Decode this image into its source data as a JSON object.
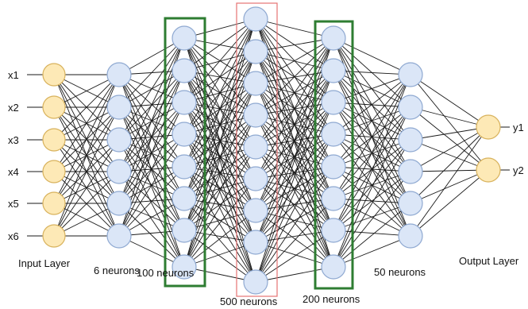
{
  "colors": {
    "input_fill": "#fde9b6",
    "input_stroke": "#d8b25c",
    "hidden_fill": "#dbe6f7",
    "hidden_stroke": "#8fa9d1",
    "output_fill": "#fde9b6",
    "output_stroke": "#d8b25c",
    "edge": "#1a1a1a",
    "highlight_green": "#2e7d32",
    "highlight_red": "#e57373"
  },
  "inputs": [
    "x1",
    "x2",
    "x3",
    "x4",
    "x5",
    "x6"
  ],
  "outputs": [
    "y1",
    "y2"
  ],
  "layers": [
    {
      "key": "input",
      "label": "Input Layer",
      "node_count": 6,
      "highlight": "none"
    },
    {
      "key": "hidden1",
      "label": "6 neurons",
      "node_count": 6,
      "highlight": "none"
    },
    {
      "key": "hidden2",
      "label": "100 neurons",
      "node_count": 8,
      "highlight": "green"
    },
    {
      "key": "hidden3",
      "label": "500 neurons",
      "node_count": 9,
      "highlight": "red"
    },
    {
      "key": "hidden4",
      "label": "200 neurons",
      "node_count": 8,
      "highlight": "green"
    },
    {
      "key": "hidden5",
      "label": "50 neurons",
      "node_count": 6,
      "highlight": "none"
    },
    {
      "key": "output",
      "label": "Output Layer",
      "node_count": 2,
      "highlight": "none"
    }
  ]
}
